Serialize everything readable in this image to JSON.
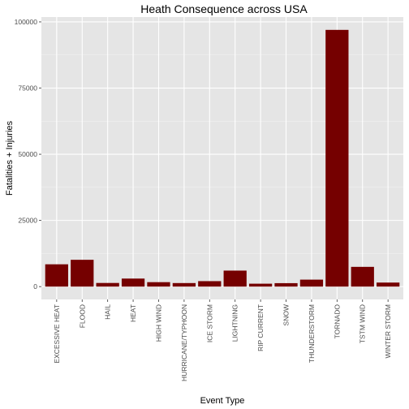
{
  "chart_data": {
    "type": "bar",
    "title": "Heath Consequence across USA",
    "xlabel": "Event Type",
    "ylabel": "Fatalities + Injuries",
    "categories": [
      "EXCESSIVE HEAT",
      "FLOOD",
      "HAIL",
      "HEAT",
      "HIGH WIND",
      "HURRICANE/TYPHOON",
      "ICE STORM",
      "LIGHTNING",
      "RIP CURRENT",
      "SNOW",
      "THUNDERSTORM",
      "TORNADO",
      "TSTM WIND",
      "WINTER STORM"
    ],
    "values": [
      8428,
      10128,
      1376,
      3037,
      1679,
      1339,
      2064,
      6046,
      1101,
      1304,
      2634,
      96979,
      7461,
      1527
    ],
    "ylim": [
      -4850,
      101830
    ],
    "yticks": [
      0,
      25000,
      50000,
      75000,
      100000
    ],
    "ytick_labels": [
      "0",
      "25000",
      "50000",
      "75000",
      "100000"
    ],
    "grid": true,
    "legend": "none",
    "colors": {
      "bar": "#750000",
      "panel_background": "#e5e5e5",
      "grid_major": "#ffffff",
      "grid_minor": "#f2f2f2"
    }
  }
}
